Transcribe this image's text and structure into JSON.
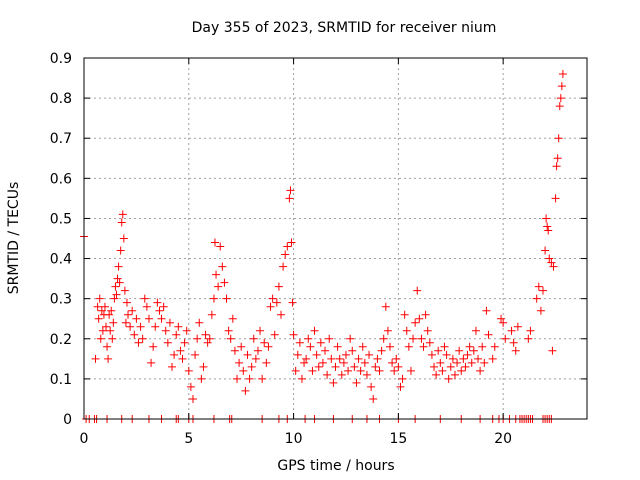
{
  "chart_data": {
    "type": "scatter",
    "title": "Day 355 of 2023, SRMTID for receiver nium",
    "xlabel": "GPS time / hours",
    "ylabel": "SRMTID / TECUs",
    "xlim": [
      0,
      24
    ],
    "ylim": [
      0,
      0.9
    ],
    "xticks": [
      0,
      5,
      10,
      15,
      20
    ],
    "xtick_labels": [
      "0",
      "5",
      "10",
      "15",
      "20"
    ],
    "yticks": [
      0,
      0.1,
      0.2,
      0.3,
      0.4,
      0.5,
      0.6,
      0.7,
      0.8,
      0.9
    ],
    "ytick_labels": [
      "0",
      "0.1",
      "0.2",
      "0.3",
      "0.4",
      "0.5",
      "0.6",
      "0.7",
      "0.8",
      "0.9"
    ],
    "grid": true,
    "marker": "+",
    "series": [
      {
        "name": "SRMTID",
        "color": "#ff0000",
        "points": [
          [
            0.0,
            0.455
          ],
          [
            0.1,
            0.0
          ],
          [
            0.25,
            0.0
          ],
          [
            0.5,
            0.0
          ],
          [
            0.55,
            0.15
          ],
          [
            0.6,
            0.0
          ],
          [
            0.65,
            0.28
          ],
          [
            0.7,
            0.25
          ],
          [
            0.75,
            0.3
          ],
          [
            0.8,
            0.2
          ],
          [
            0.85,
            0.27
          ],
          [
            0.9,
            0.22
          ],
          [
            0.95,
            0.26
          ],
          [
            1.0,
            0.28
          ],
          [
            1.05,
            0.23
          ],
          [
            1.1,
            0.18
          ],
          [
            1.15,
            0.15
          ],
          [
            1.2,
            0.26
          ],
          [
            1.25,
            0.22
          ],
          [
            1.3,
            0.27
          ],
          [
            1.35,
            0.2
          ],
          [
            1.4,
            0.24
          ],
          [
            1.45,
            0.3
          ],
          [
            1.5,
            0.33
          ],
          [
            1.55,
            0.31
          ],
          [
            1.6,
            0.35
          ],
          [
            1.65,
            0.38
          ],
          [
            1.7,
            0.34
          ],
          [
            1.75,
            0.42
          ],
          [
            1.8,
            0.49
          ],
          [
            1.85,
            0.51
          ],
          [
            1.9,
            0.45
          ],
          [
            1.95,
            0.32
          ],
          [
            2.0,
            0.24
          ],
          [
            2.05,
            0.29
          ],
          [
            2.1,
            0.26
          ],
          [
            2.2,
            0.23
          ],
          [
            2.3,
            0.27
          ],
          [
            2.4,
            0.21
          ],
          [
            2.5,
            0.25
          ],
          [
            2.6,
            0.19
          ],
          [
            2.7,
            0.23
          ],
          [
            2.8,
            0.2
          ],
          [
            2.9,
            0.3
          ],
          [
            3.0,
            0.28
          ],
          [
            3.1,
            0.25
          ],
          [
            3.2,
            0.14
          ],
          [
            3.3,
            0.18
          ],
          [
            3.4,
            0.23
          ],
          [
            3.5,
            0.29
          ],
          [
            3.6,
            0.27
          ],
          [
            3.7,
            0.25
          ],
          [
            3.8,
            0.28
          ],
          [
            3.9,
            0.22
          ],
          [
            4.0,
            0.19
          ],
          [
            4.1,
            0.24
          ],
          [
            4.2,
            0.13
          ],
          [
            4.3,
            0.16
          ],
          [
            4.4,
            0.21
          ],
          [
            4.5,
            0.23
          ],
          [
            4.6,
            0.17
          ],
          [
            4.7,
            0.15
          ],
          [
            4.8,
            0.19
          ],
          [
            4.9,
            0.22
          ],
          [
            5.0,
            0.12
          ],
          [
            5.1,
            0.08
          ],
          [
            5.2,
            0.05
          ],
          [
            5.3,
            0.16
          ],
          [
            5.4,
            0.2
          ],
          [
            5.5,
            0.24
          ],
          [
            5.6,
            0.1
          ],
          [
            5.7,
            0.13
          ],
          [
            5.8,
            0.21
          ],
          [
            5.9,
            0.19
          ],
          [
            6.0,
            0.2
          ],
          [
            6.1,
            0.26
          ],
          [
            6.2,
            0.3
          ],
          [
            6.25,
            0.44
          ],
          [
            6.3,
            0.36
          ],
          [
            6.4,
            0.33
          ],
          [
            6.5,
            0.43
          ],
          [
            6.6,
            0.38
          ],
          [
            6.7,
            0.34
          ],
          [
            6.8,
            0.3
          ],
          [
            6.9,
            0.22
          ],
          [
            7.0,
            0.2
          ],
          [
            7.1,
            0.25
          ],
          [
            7.2,
            0.17
          ],
          [
            7.3,
            0.1
          ],
          [
            7.4,
            0.14
          ],
          [
            7.5,
            0.18
          ],
          [
            7.6,
            0.12
          ],
          [
            7.7,
            0.07
          ],
          [
            7.8,
            0.16
          ],
          [
            7.9,
            0.1
          ],
          [
            8.0,
            0.13
          ],
          [
            8.1,
            0.2
          ],
          [
            8.2,
            0.15
          ],
          [
            8.3,
            0.17
          ],
          [
            8.4,
            0.22
          ],
          [
            8.5,
            0.1
          ],
          [
            8.6,
            0.19
          ],
          [
            8.7,
            0.14
          ],
          [
            8.8,
            0.18
          ],
          [
            8.9,
            0.28
          ],
          [
            9.0,
            0.3
          ],
          [
            9.1,
            0.21
          ],
          [
            9.2,
            0.29
          ],
          [
            9.3,
            0.33
          ],
          [
            9.4,
            0.26
          ],
          [
            9.5,
            0.38
          ],
          [
            9.6,
            0.41
          ],
          [
            9.7,
            0.43
          ],
          [
            9.8,
            0.55
          ],
          [
            9.85,
            0.57
          ],
          [
            9.9,
            0.44
          ],
          [
            9.95,
            0.29
          ],
          [
            10.0,
            0.21
          ],
          [
            10.1,
            0.12
          ],
          [
            10.2,
            0.16
          ],
          [
            10.3,
            0.19
          ],
          [
            10.4,
            0.1
          ],
          [
            10.5,
            0.14
          ],
          [
            10.6,
            0.15
          ],
          [
            10.7,
            0.2
          ],
          [
            10.8,
            0.18
          ],
          [
            10.9,
            0.12
          ],
          [
            11.0,
            0.22
          ],
          [
            11.1,
            0.16
          ],
          [
            11.2,
            0.13
          ],
          [
            11.3,
            0.19
          ],
          [
            11.4,
            0.14
          ],
          [
            11.5,
            0.17
          ],
          [
            11.6,
            0.11
          ],
          [
            11.7,
            0.2
          ],
          [
            11.8,
            0.15
          ],
          [
            11.9,
            0.09
          ],
          [
            12.0,
            0.13
          ],
          [
            12.1,
            0.18
          ],
          [
            12.2,
            0.15
          ],
          [
            12.3,
            0.11
          ],
          [
            12.4,
            0.14
          ],
          [
            12.5,
            0.16
          ],
          [
            12.6,
            0.12
          ],
          [
            12.7,
            0.2
          ],
          [
            12.8,
            0.17
          ],
          [
            12.9,
            0.13
          ],
          [
            13.0,
            0.09
          ],
          [
            13.1,
            0.15
          ],
          [
            13.2,
            0.12
          ],
          [
            13.3,
            0.18
          ],
          [
            13.4,
            0.14
          ],
          [
            13.5,
            0.11
          ],
          [
            13.6,
            0.16
          ],
          [
            13.7,
            0.08
          ],
          [
            13.8,
            0.05
          ],
          [
            13.9,
            0.13
          ],
          [
            14.0,
            0.15
          ],
          [
            14.1,
            0.12
          ],
          [
            14.2,
            0.17
          ],
          [
            14.3,
            0.2
          ],
          [
            14.4,
            0.28
          ],
          [
            14.5,
            0.22
          ],
          [
            14.6,
            0.18
          ],
          [
            14.7,
            0.14
          ],
          [
            14.8,
            0.12
          ],
          [
            14.9,
            0.15
          ],
          [
            15.0,
            0.13
          ],
          [
            15.1,
            0.08
          ],
          [
            15.2,
            0.1
          ],
          [
            15.3,
            0.26
          ],
          [
            15.4,
            0.22
          ],
          [
            15.5,
            0.18
          ],
          [
            15.6,
            0.12
          ],
          [
            15.7,
            0.2
          ],
          [
            15.8,
            0.24
          ],
          [
            15.9,
            0.32
          ],
          [
            16.0,
            0.25
          ],
          [
            16.1,
            0.2
          ],
          [
            16.2,
            0.18
          ],
          [
            16.3,
            0.26
          ],
          [
            16.4,
            0.22
          ],
          [
            16.5,
            0.19
          ],
          [
            16.6,
            0.16
          ],
          [
            16.7,
            0.13
          ],
          [
            16.8,
            0.11
          ],
          [
            16.9,
            0.17
          ],
          [
            17.0,
            0.14
          ],
          [
            17.1,
            0.12
          ],
          [
            17.2,
            0.18
          ],
          [
            17.3,
            0.16
          ],
          [
            17.4,
            0.1
          ],
          [
            17.5,
            0.13
          ],
          [
            17.6,
            0.15
          ],
          [
            17.7,
            0.11
          ],
          [
            17.8,
            0.14
          ],
          [
            17.9,
            0.17
          ],
          [
            18.0,
            0.12
          ],
          [
            18.1,
            0.15
          ],
          [
            18.2,
            0.13
          ],
          [
            18.3,
            0.16
          ],
          [
            18.4,
            0.18
          ],
          [
            18.5,
            0.14
          ],
          [
            18.6,
            0.17
          ],
          [
            18.7,
            0.22
          ],
          [
            18.8,
            0.15
          ],
          [
            18.9,
            0.12
          ],
          [
            19.0,
            0.18
          ],
          [
            19.1,
            0.14
          ],
          [
            19.2,
            0.27
          ],
          [
            19.3,
            0.21
          ],
          [
            19.5,
            0.15
          ],
          [
            19.6,
            0.18
          ],
          [
            19.9,
            0.25
          ],
          [
            20.0,
            0.24
          ],
          [
            20.1,
            0.2
          ],
          [
            20.4,
            0.22
          ],
          [
            20.5,
            0.19
          ],
          [
            20.6,
            0.17
          ],
          [
            20.7,
            0.23
          ],
          [
            21.2,
            0.2
          ],
          [
            21.3,
            0.22
          ],
          [
            21.6,
            0.3
          ],
          [
            21.7,
            0.33
          ],
          [
            21.8,
            0.27
          ],
          [
            21.9,
            0.32
          ],
          [
            22.0,
            0.42
          ],
          [
            22.05,
            0.5
          ],
          [
            22.1,
            0.48
          ],
          [
            22.15,
            0.47
          ],
          [
            22.2,
            0.4
          ],
          [
            22.3,
            0.39
          ],
          [
            22.35,
            0.17
          ],
          [
            22.4,
            0.38
          ],
          [
            22.5,
            0.55
          ],
          [
            22.55,
            0.63
          ],
          [
            22.6,
            0.65
          ],
          [
            22.65,
            0.7
          ],
          [
            22.7,
            0.78
          ],
          [
            22.75,
            0.8
          ],
          [
            22.8,
            0.83
          ],
          [
            22.85,
            0.86
          ],
          [
            6.95,
            0.0
          ],
          [
            7.05,
            0.0
          ],
          [
            8.5,
            0.0
          ],
          [
            9.3,
            0.0
          ],
          [
            9.7,
            0.0
          ],
          [
            10.55,
            0.0
          ],
          [
            11.0,
            0.0
          ],
          [
            11.9,
            0.0
          ],
          [
            12.8,
            0.0
          ],
          [
            13.5,
            0.0
          ],
          [
            14.1,
            0.0
          ],
          [
            15.0,
            0.0
          ],
          [
            15.8,
            0.0
          ],
          [
            17.0,
            0.0
          ],
          [
            18.0,
            0.0
          ],
          [
            18.9,
            0.0
          ],
          [
            19.5,
            0.0
          ],
          [
            19.8,
            0.0
          ],
          [
            20.0,
            0.0
          ],
          [
            20.3,
            0.0
          ],
          [
            20.6,
            0.0
          ],
          [
            20.8,
            0.0
          ],
          [
            20.9,
            0.0
          ],
          [
            21.0,
            0.0
          ],
          [
            21.1,
            0.0
          ],
          [
            21.2,
            0.0
          ],
          [
            21.3,
            0.0
          ],
          [
            21.4,
            0.0
          ],
          [
            21.9,
            0.0
          ],
          [
            22.0,
            0.0
          ],
          [
            22.1,
            0.0
          ],
          [
            22.2,
            0.0
          ],
          [
            22.3,
            0.0
          ],
          [
            1.1,
            0.0
          ],
          [
            1.8,
            0.0
          ],
          [
            2.3,
            0.0
          ],
          [
            3.1,
            0.0
          ],
          [
            3.7,
            0.0
          ],
          [
            4.4,
            0.0
          ],
          [
            4.5,
            0.0
          ],
          [
            5.0,
            0.0
          ],
          [
            5.2,
            0.0
          ],
          [
            6.2,
            0.0
          ]
        ]
      }
    ]
  }
}
